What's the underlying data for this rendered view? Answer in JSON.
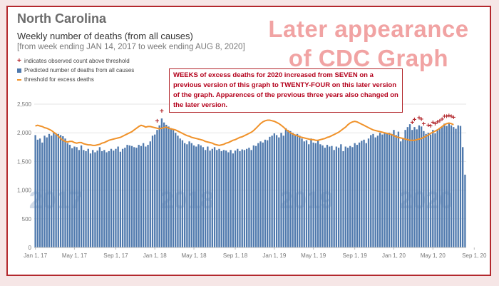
{
  "header": {
    "state": "North Carolina",
    "subtitle": "Weekly number of deaths (from all causes)",
    "date_range": "[from week ending JAN 14, 2017 to week ending AUG 8, 2020]"
  },
  "banner": {
    "line1": "Later appearance",
    "line2": "of CDC Graph"
  },
  "legend": {
    "observed": "indicates observed count above threshold",
    "predicted": "Predicted number of deaths from all causes",
    "threshold": "threshold for excess deaths"
  },
  "annotation": "WEEKS of excess deaths for 2020 increased from SEVEN on a previous version of this graph to TWENTY-FOUR on this later version of the graph.  Apparences of the previous three years also changed on the later version.",
  "colors": {
    "bars": "#4f79ad",
    "threshold": "#f0922a",
    "marker": "#b3282d",
    "border": "#b3282d"
  },
  "chart_data": {
    "type": "bar",
    "ylim": [
      0,
      2500
    ],
    "y_ticks": [
      0,
      500,
      1000,
      1500,
      2000,
      2500
    ],
    "y_tick_labels": [
      "0",
      "500",
      "1,000",
      "1,500",
      "2,000",
      "2,500"
    ],
    "x_tick_labels": [
      "Jan 1, 17",
      "May 1, 17",
      "Sep 1, 17",
      "Jan 1, 18",
      "May 1, 18",
      "Sep 1, 18",
      "Jan 1, 19",
      "May 1, 19",
      "Sep 1, 19",
      "Jan 1, 20",
      "May 1, 20",
      "Sep 1, 20"
    ],
    "x_tick_weeks": [
      0,
      17,
      35,
      52,
      69,
      87,
      104,
      121,
      139,
      156,
      173,
      191
    ],
    "year_watermarks": [
      "2017",
      "2018",
      "2019",
      "2020"
    ],
    "year_watermark_weeks": [
      9,
      66,
      118,
      170
    ],
    "series": [
      {
        "values": [
          1960,
          1880,
          1900,
          1830,
          1950,
          1920,
          1980,
          1950,
          2000,
          1990,
          1980,
          1960,
          1940,
          1900,
          1820,
          1790,
          1730,
          1760,
          1750,
          1700,
          1780,
          1700,
          1680,
          1720,
          1640,
          1700,
          1660,
          1690,
          1750,
          1680,
          1700,
          1660,
          1680,
          1720,
          1690,
          1720,
          1760,
          1670,
          1720,
          1740,
          1790,
          1780,
          1770,
          1750,
          1740,
          1790,
          1770,
          1820,
          1760,
          1790,
          1850,
          1950,
          1970,
          2050,
          2130,
          2250,
          2180,
          2140,
          2110,
          2080,
          2050,
          2000,
          1950,
          1900,
          1870,
          1820,
          1800,
          1850,
          1820,
          1780,
          1760,
          1800,
          1780,
          1750,
          1700,
          1760,
          1690,
          1720,
          1750,
          1700,
          1720,
          1680,
          1700,
          1690,
          1660,
          1700,
          1640,
          1690,
          1720,
          1680,
          1710,
          1700,
          1720,
          1740,
          1700,
          1780,
          1770,
          1820,
          1850,
          1830,
          1880,
          1870,
          1930,
          1950,
          1990,
          1960,
          1920,
          2000,
          1950,
          2080,
          2050,
          2030,
          2000,
          1960,
          1980,
          1950,
          1900,
          1850,
          1870,
          1800,
          1900,
          1830,
          1820,
          1860,
          1800,
          1780,
          1740,
          1790,
          1760,
          1770,
          1700,
          1760,
          1740,
          1800,
          1680,
          1760,
          1740,
          1770,
          1750,
          1820,
          1790,
          1830,
          1860,
          1880,
          1820,
          1900,
          1960,
          1980,
          1920,
          1950,
          2000,
          1970,
          1990,
          1990,
          2000,
          1980,
          2050,
          1960,
          2020,
          1850,
          1900,
          2050,
          2100,
          2150,
          2050,
          2100,
          2060,
          2130,
          2110,
          2030,
          1980,
          2000,
          1970,
          2050,
          1990,
          2060,
          2080,
          2100,
          2160,
          2120,
          2170,
          2130,
          2100,
          2070,
          2130,
          2120,
          1750,
          1270
        ]
      }
    ],
    "threshold_values": [
      2120,
      2130,
      2120,
      2110,
      2090,
      2080,
      2060,
      2040,
      2010,
      1980,
      1940,
      1900,
      1870,
      1850,
      1840,
      1850,
      1850,
      1830,
      1820,
      1830,
      1830,
      1810,
      1800,
      1790,
      1790,
      1780,
      1780,
      1790,
      1800,
      1820,
      1830,
      1850,
      1870,
      1880,
      1890,
      1900,
      1910,
      1920,
      1940,
      1960,
      1980,
      2000,
      2020,
      2050,
      2080,
      2110,
      2130,
      2120,
      2100,
      2110,
      2110,
      2100,
      2090,
      2080,
      2070,
      2080,
      2090,
      2100,
      2080,
      2070,
      2060,
      2050,
      2030,
      2010,
      1990,
      1970,
      1950,
      1940,
      1920,
      1910,
      1900,
      1890,
      1880,
      1870,
      1850,
      1840,
      1830,
      1820,
      1800,
      1790,
      1780,
      1790,
      1800,
      1820,
      1830,
      1850,
      1870,
      1880,
      1900,
      1920,
      1930,
      1950,
      1970,
      1990,
      2010,
      2040,
      2080,
      2120,
      2160,
      2190,
      2210,
      2220,
      2220,
      2210,
      2200,
      2180,
      2160,
      2130,
      2100,
      2060,
      2030,
      2000,
      1980,
      1960,
      1950,
      1930,
      1920,
      1910,
      1900,
      1890,
      1880,
      1880,
      1870,
      1870,
      1880,
      1890,
      1900,
      1920,
      1930,
      1950,
      1970,
      1990,
      2010,
      2040,
      2070,
      2100,
      2140,
      2170,
      2190,
      2200,
      2190,
      2170,
      2150,
      2130,
      2110,
      2090,
      2070,
      2050,
      2040,
      2030,
      2020,
      2010,
      2000,
      1990,
      1980,
      1970,
      1950,
      1930,
      1920,
      1910,
      1900,
      1890,
      1880,
      1870,
      1870,
      1870,
      1880,
      1890,
      1900,
      1920,
      1940,
      1960,
      1990,
      2010,
      2030,
      2050,
      2080,
      2110,
      2140,
      2160,
      2170,
      2160,
      2140
    ],
    "excess_weeks": [
      53,
      55,
      164,
      165,
      167,
      168,
      169,
      171,
      172,
      173,
      174,
      175,
      176,
      177,
      178,
      179,
      180,
      181,
      182,
      183,
      184,
      185,
      186,
      187,
      188,
      189,
      190,
      191,
      192
    ]
  }
}
